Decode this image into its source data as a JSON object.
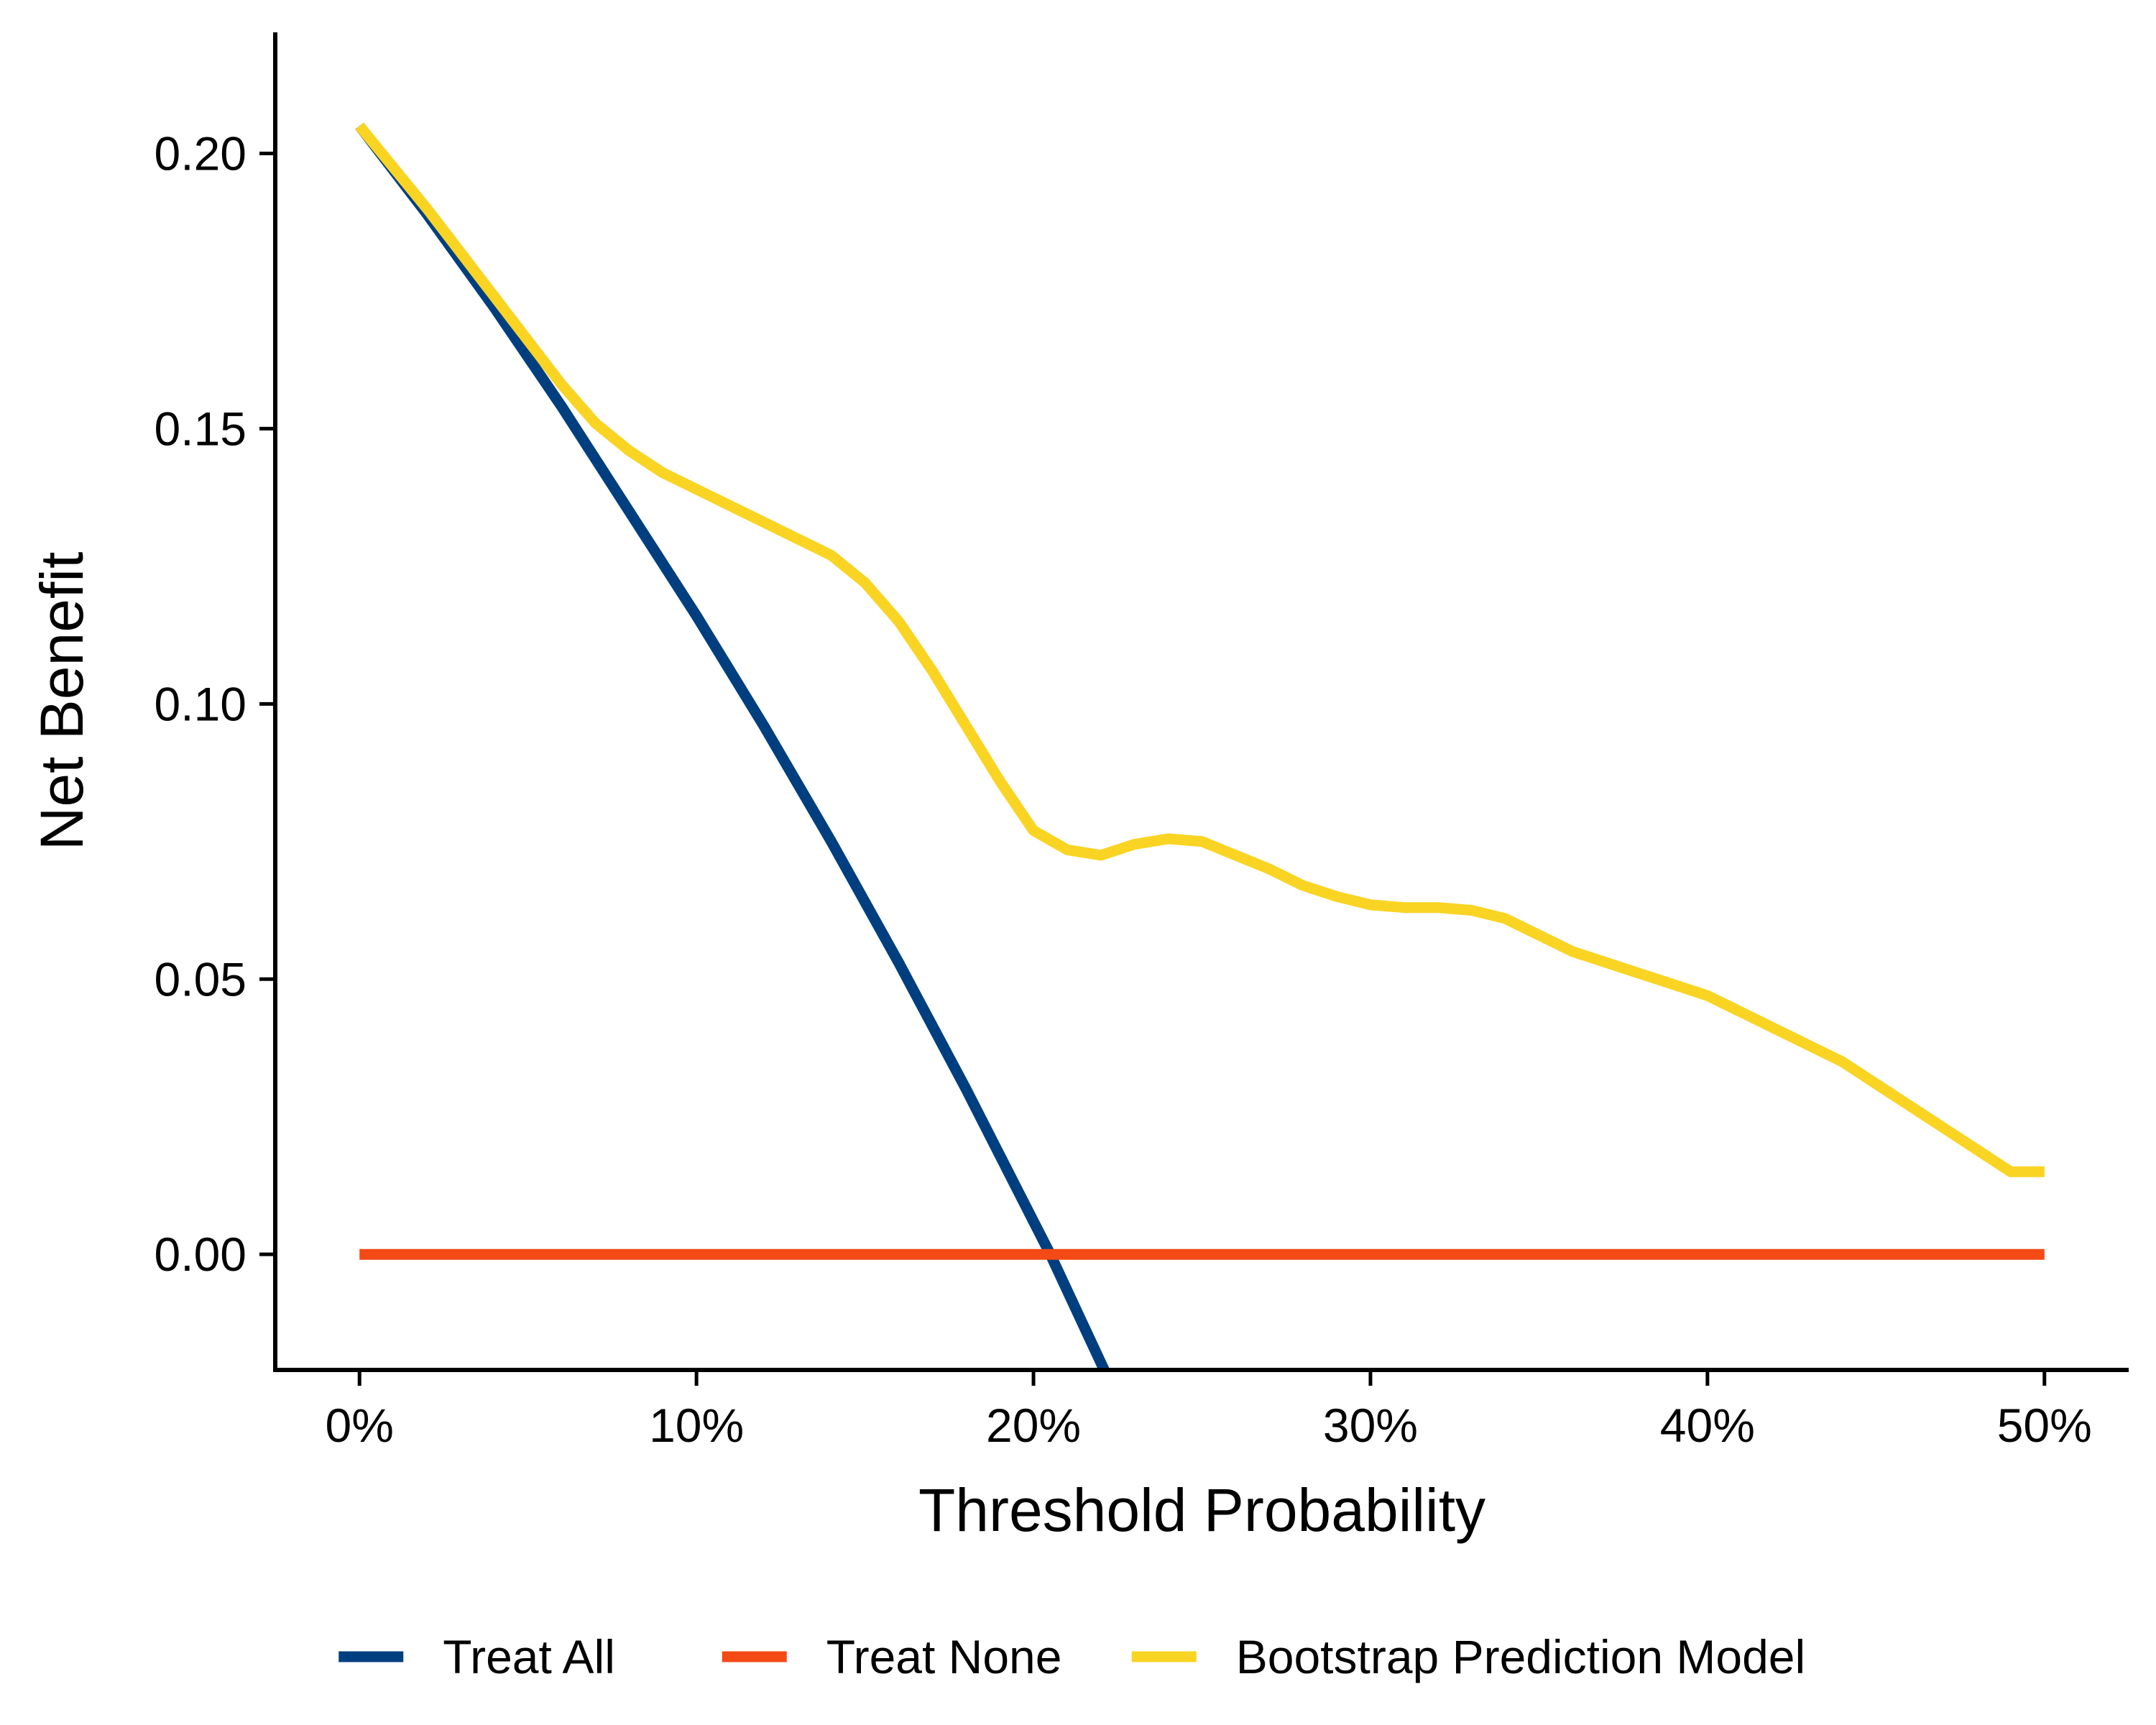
{
  "chart_data": {
    "type": "line",
    "title": "",
    "xlabel": "Threshold Probability",
    "ylabel": "Net Benefit",
    "xlim": [
      -0.025,
      0.525
    ],
    "ylim": [
      -0.021,
      0.222
    ],
    "x_ticks": [
      0,
      0.1,
      0.2,
      0.3,
      0.4,
      0.5
    ],
    "x_tick_labels": [
      "0%",
      "10%",
      "20%",
      "30%",
      "40%",
      "50%"
    ],
    "y_ticks": [
      0,
      0.05,
      0.1,
      0.15,
      0.2
    ],
    "y_tick_labels": [
      "0.00",
      "0.05",
      "0.10",
      "0.15",
      "0.20"
    ],
    "grid": false,
    "legend_position": "bottom",
    "series": [
      {
        "name": "Treat All",
        "color": "#003F7F",
        "x": [
          0.0,
          0.02,
          0.04,
          0.06,
          0.08,
          0.1,
          0.12,
          0.14,
          0.16,
          0.18,
          0.2,
          0.205,
          0.221
        ],
        "y": [
          0.205,
          0.189,
          0.172,
          0.154,
          0.135,
          0.116,
          0.096,
          0.075,
          0.053,
          0.03,
          0.006,
          0.0,
          -0.021
        ]
      },
      {
        "name": "Treat None",
        "color": "#F44A16",
        "x": [
          0.0,
          0.5
        ],
        "y": [
          0.0,
          0.0
        ]
      },
      {
        "name": "Bootstrap Prediction Model",
        "color": "#F9D423",
        "x": [
          0.0,
          0.02,
          0.04,
          0.06,
          0.07,
          0.08,
          0.09,
          0.1,
          0.11,
          0.12,
          0.13,
          0.14,
          0.15,
          0.16,
          0.17,
          0.18,
          0.19,
          0.2,
          0.21,
          0.22,
          0.23,
          0.24,
          0.25,
          0.26,
          0.27,
          0.28,
          0.29,
          0.3,
          0.31,
          0.32,
          0.33,
          0.34,
          0.35,
          0.36,
          0.37,
          0.38,
          0.39,
          0.4,
          0.41,
          0.42,
          0.43,
          0.44,
          0.45,
          0.46,
          0.47,
          0.48,
          0.49,
          0.5
        ],
        "y": [
          0.205,
          0.19,
          0.174,
          0.158,
          0.151,
          0.146,
          0.142,
          0.139,
          0.136,
          0.133,
          0.13,
          0.127,
          0.122,
          0.115,
          0.106,
          0.096,
          0.086,
          0.077,
          0.0735,
          0.0725,
          0.0745,
          0.0755,
          0.075,
          0.0725,
          0.07,
          0.067,
          0.065,
          0.0635,
          0.063,
          0.063,
          0.0625,
          0.061,
          0.058,
          0.055,
          0.053,
          0.051,
          0.049,
          0.047,
          0.044,
          0.041,
          0.038,
          0.035,
          0.031,
          0.027,
          0.023,
          0.019,
          0.015,
          0.015
        ]
      }
    ]
  }
}
